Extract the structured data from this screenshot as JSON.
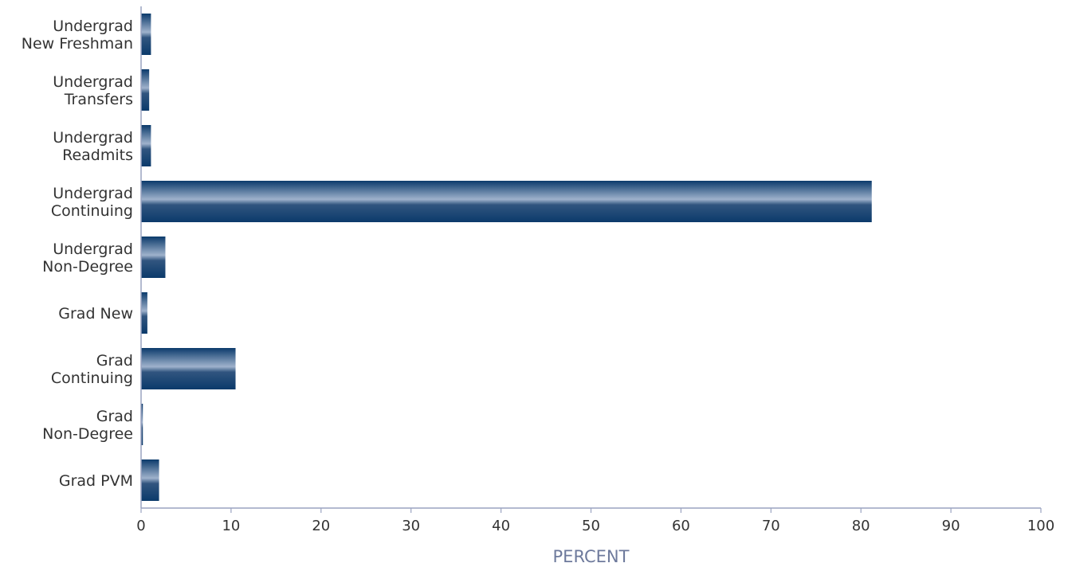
{
  "chart_data": {
    "type": "bar",
    "orientation": "horizontal",
    "categories": [
      [
        "Undergrad",
        "New Freshman"
      ],
      [
        "Undergrad",
        "Transfers"
      ],
      [
        "Undergrad",
        "Readmits"
      ],
      [
        "Undergrad",
        "Continuing"
      ],
      [
        "Undergrad",
        "Non-Degree"
      ],
      [
        "Grad New"
      ],
      [
        "Grad",
        "Continuing"
      ],
      [
        "Grad",
        "Non-Degree"
      ],
      [
        "Grad PVM"
      ]
    ],
    "values": [
      1.1,
      0.9,
      1.1,
      81.2,
      2.7,
      0.7,
      10.5,
      0.2,
      2.0
    ],
    "xlabel": "PERCENT",
    "ylabel": "",
    "xlim": [
      0,
      100
    ],
    "xticks": [
      "0",
      "10",
      "20",
      "30",
      "40",
      "50",
      "60",
      "70",
      "80",
      "90",
      "100"
    ],
    "grid": false,
    "legend": "none",
    "colors": {
      "bar_dark": "#0b3a6b",
      "bar_light": "#9fb2cc",
      "axis": "#9aa3c1",
      "label": "#333333",
      "axis_title": "#6e7a9c"
    }
  }
}
